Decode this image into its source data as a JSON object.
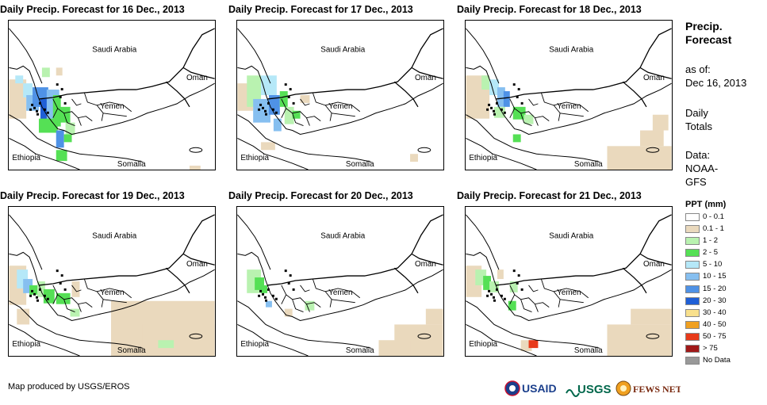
{
  "panels": [
    {
      "title": "Daily Precip. Forecast for 16 Dec., 2013",
      "variant": 0
    },
    {
      "title": "Daily Precip. Forecast for 17 Dec., 2013",
      "variant": 1
    },
    {
      "title": "Daily Precip. Forecast for 18 Dec., 2013",
      "variant": 2
    },
    {
      "title": "Daily Precip. Forecast for 19 Dec., 2013",
      "variant": 3
    },
    {
      "title": "Daily Precip. Forecast for 20 Dec., 2013",
      "variant": 4
    },
    {
      "title": "Daily Precip. Forecast for 21 Dec., 2013",
      "variant": 5
    }
  ],
  "map_labels": {
    "saudi": "Saudi Arabia",
    "oman": "Oman",
    "yemen": "Yemen",
    "ethiopia": "Ethiopia",
    "somalia": "Somalia"
  },
  "sidebar": {
    "title_line1": "Precip.",
    "title_line2": "Forecast",
    "asof_line1": "as of:",
    "asof_line2": "Dec 16, 2013",
    "daily_line1": "Daily",
    "daily_line2": "Totals",
    "data_line1": "Data:",
    "data_line2": "NOAA-",
    "data_line3": "GFS"
  },
  "legend": {
    "title": "PPT (mm)",
    "items": [
      {
        "label": "0 - 0.1",
        "color": "#ffffff"
      },
      {
        "label": "0.1 - 1",
        "color": "#ead9bd"
      },
      {
        "label": "1 - 2",
        "color": "#b9f2b0"
      },
      {
        "label": "2 - 5",
        "color": "#55e055"
      },
      {
        "label": "5 - 10",
        "color": "#b5e8f8"
      },
      {
        "label": "10 - 15",
        "color": "#86bff0"
      },
      {
        "label": "15 - 20",
        "color": "#4f92e6"
      },
      {
        "label": "20 - 30",
        "color": "#1f5fd6"
      },
      {
        "label": "30 - 40",
        "color": "#f8e08c"
      },
      {
        "label": "40 - 50",
        "color": "#f0a020"
      },
      {
        "label": "50 - 75",
        "color": "#e83a1a"
      },
      {
        "label": "> 75",
        "color": "#a01818"
      },
      {
        "label": "No Data",
        "color": "#999999"
      }
    ]
  },
  "credit": "Map produced by USGS/EROS",
  "logos": {
    "usaid": "USAID",
    "usgs": "USGS",
    "fews": "FEWS NET"
  }
}
